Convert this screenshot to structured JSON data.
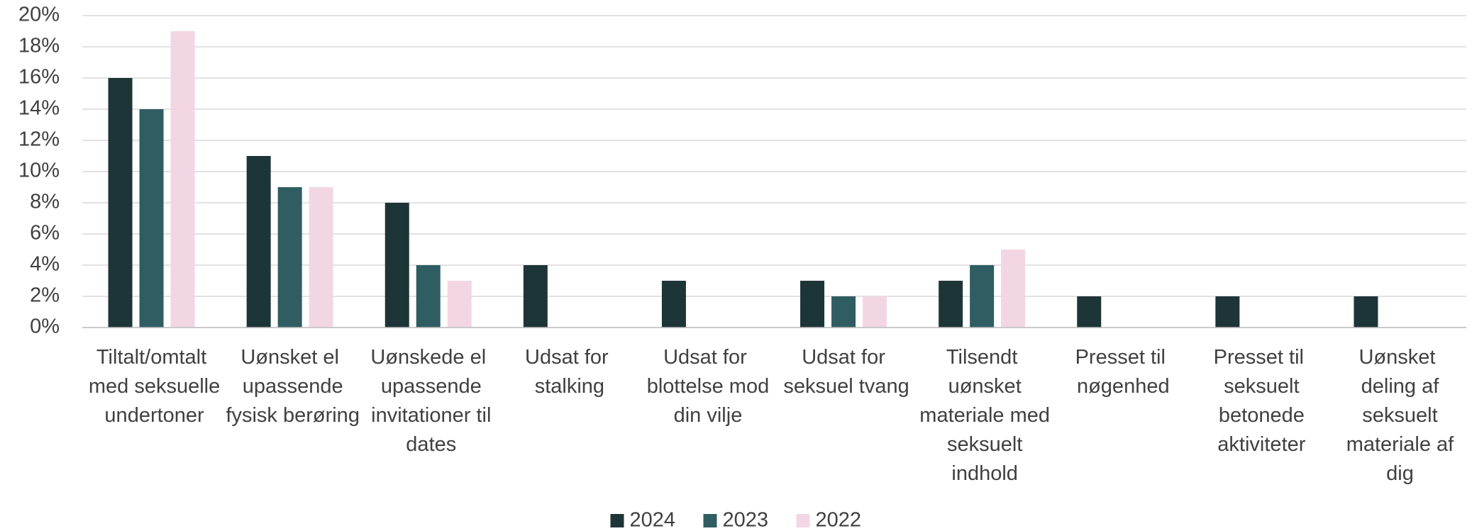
{
  "chart_data": {
    "type": "bar",
    "categories": [
      "Tiltalt/omtalt med seksuelle undertoner",
      "Uønsket el upassende fysisk berøring",
      "Uønskede el upassende invitationer til dates",
      "Udsat for stalking",
      "Udsat for blottelse mod din vilje",
      "Udsat for seksuel tvang",
      "Tilsendt uønsket materiale med seksuelt indhold",
      "Presset til nøgenhed",
      "Presset til seksuelt betonede aktiviteter",
      "Uønsket deling af seksuelt materiale af dig"
    ],
    "series": [
      {
        "name": "2024",
        "color": "#1e3538",
        "values": [
          16,
          11,
          8,
          4,
          3,
          3,
          3,
          2,
          2,
          2
        ]
      },
      {
        "name": "2023",
        "color": "#2f5d62",
        "values": [
          14,
          9,
          4,
          0,
          0,
          2,
          4,
          0,
          0,
          0
        ]
      },
      {
        "name": "2022",
        "color": "#f3d6e4",
        "values": [
          19,
          9,
          3,
          0,
          0,
          2,
          5,
          0,
          0,
          0
        ]
      }
    ],
    "ylim": [
      0,
      20
    ],
    "yticks": [
      {
        "value": 0,
        "label": "0%"
      },
      {
        "value": 2,
        "label": "2%"
      },
      {
        "value": 4,
        "label": "4%"
      },
      {
        "value": 6,
        "label": "6%"
      },
      {
        "value": 8,
        "label": "8%"
      },
      {
        "value": 10,
        "label": "10%"
      },
      {
        "value": 12,
        "label": "12%"
      },
      {
        "value": 14,
        "label": "14%"
      },
      {
        "value": 16,
        "label": "16%"
      },
      {
        "value": 18,
        "label": "18%"
      },
      {
        "value": 20,
        "label": "20%"
      }
    ],
    "grid": true,
    "legend": "bottom"
  }
}
